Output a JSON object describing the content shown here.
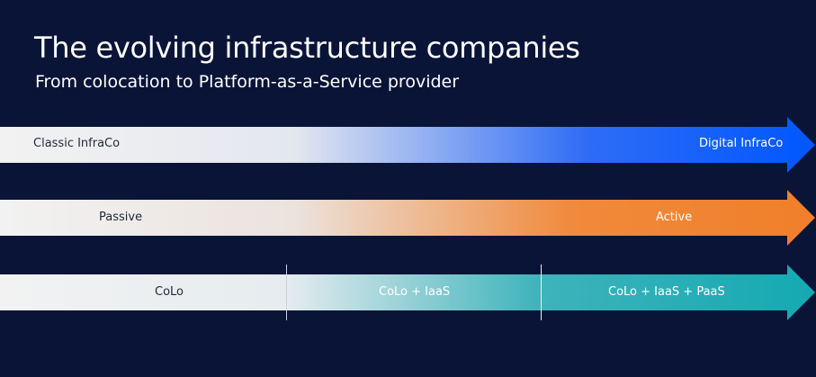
{
  "slide": {
    "title": "The evolving infrastructure companies",
    "subtitle": "From colocation to Platform-as-a-Service provider"
  },
  "arrows": [
    {
      "id": "infraco",
      "labels": [
        "Classic InfraCo",
        "Digital InfraCo"
      ],
      "colors": {
        "start": "#f2f2f2",
        "end": "#0057ff"
      }
    },
    {
      "id": "activity",
      "labels": [
        "Passive",
        "Active"
      ],
      "colors": {
        "start": "#f2f2f2",
        "end": "#f07f2a"
      }
    },
    {
      "id": "services",
      "labels": [
        "CoLo",
        "CoLo + IaaS",
        "CoLo + IaaS + PaaS"
      ],
      "colors": {
        "start": "#f2f2f2",
        "end": "#15a9b2"
      }
    }
  ]
}
